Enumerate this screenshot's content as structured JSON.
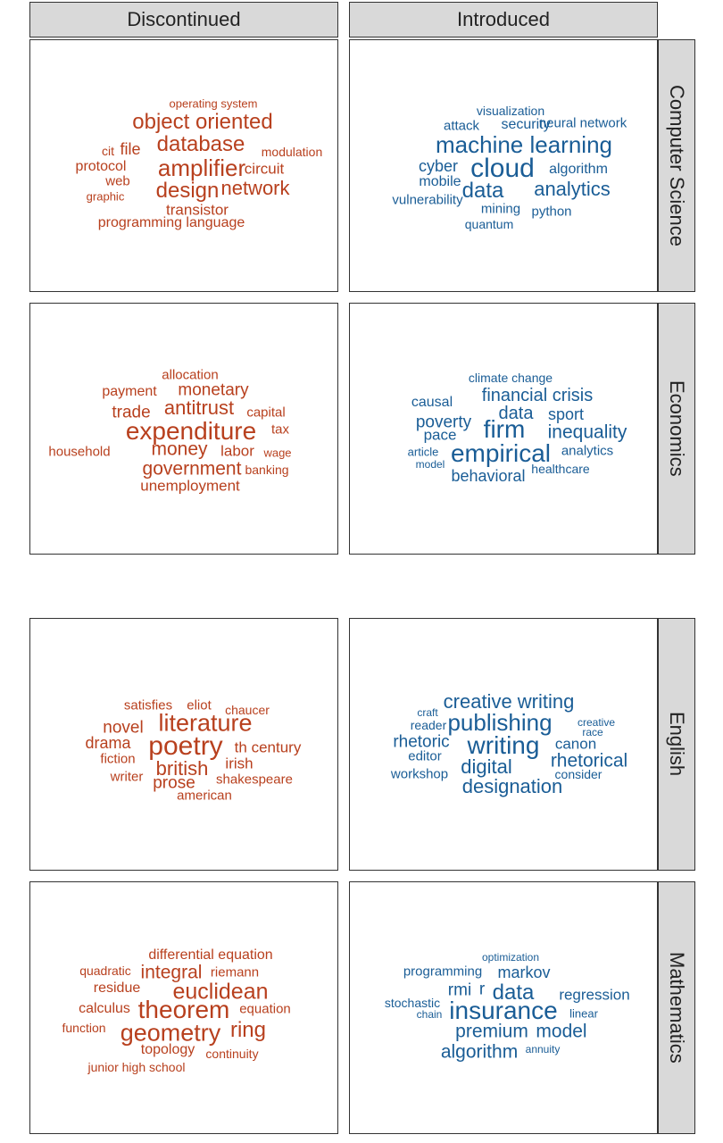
{
  "columns": {
    "discontinued": "Discontinued",
    "introduced": "Introduced"
  },
  "colors": {
    "discontinued": "#b8401e",
    "introduced": "#1a5d96"
  },
  "rows": [
    {
      "name": "Computer Science",
      "discontinued": [
        "operating system",
        "object oriented",
        "database",
        "cit",
        "file",
        "modulation",
        "protocol",
        "amplifier",
        "circuit",
        "web",
        "graphic",
        "design",
        "network",
        "transistor",
        "programming language"
      ],
      "introduced": [
        "visualization",
        "attack",
        "security",
        "neural network",
        "machine learning",
        "cyber",
        "cloud",
        "algorithm",
        "mobile",
        "data",
        "analytics",
        "vulnerability",
        "mining",
        "python",
        "quantum"
      ]
    },
    {
      "name": "Economics",
      "discontinued": [
        "allocation",
        "payment",
        "monetary",
        "trade",
        "antitrust",
        "capital",
        "expenditure",
        "tax",
        "household",
        "money",
        "labor",
        "wage",
        "government",
        "banking",
        "unemployment"
      ],
      "introduced": [
        "climate change",
        "causal",
        "financial crisis",
        "poverty",
        "data",
        "sport",
        "pace",
        "firm",
        "inequality",
        "article",
        "empirical",
        "analytics",
        "model",
        "healthcare",
        "behavioral"
      ]
    },
    {
      "name": "English",
      "discontinued": [
        "satisfies",
        "eliot",
        "chaucer",
        "novel",
        "literature",
        "drama",
        "poetry",
        "th century",
        "fiction",
        "british",
        "irish",
        "writer",
        "prose",
        "shakespeare",
        "american"
      ],
      "introduced": [
        "creative writing",
        "craft",
        "reader",
        "publishing",
        "creative",
        "race",
        "rhetoric",
        "writing",
        "canon",
        "editor",
        "rhetorical",
        "workshop",
        "digital",
        "consider",
        "designation"
      ]
    },
    {
      "name": "Mathematics",
      "discontinued": [
        "differential equation",
        "quadratic",
        "integral",
        "riemann",
        "residue",
        "euclidean",
        "calculus",
        "theorem",
        "equation",
        "function",
        "geometry",
        "ring",
        "topology",
        "continuity",
        "junior high school"
      ],
      "introduced": [
        "optimization",
        "programming",
        "markov",
        "rmi",
        "r",
        "data",
        "regression",
        "stochastic",
        "chain",
        "insurance",
        "linear",
        "premium",
        "model",
        "algorithm",
        "annuity"
      ]
    }
  ]
}
